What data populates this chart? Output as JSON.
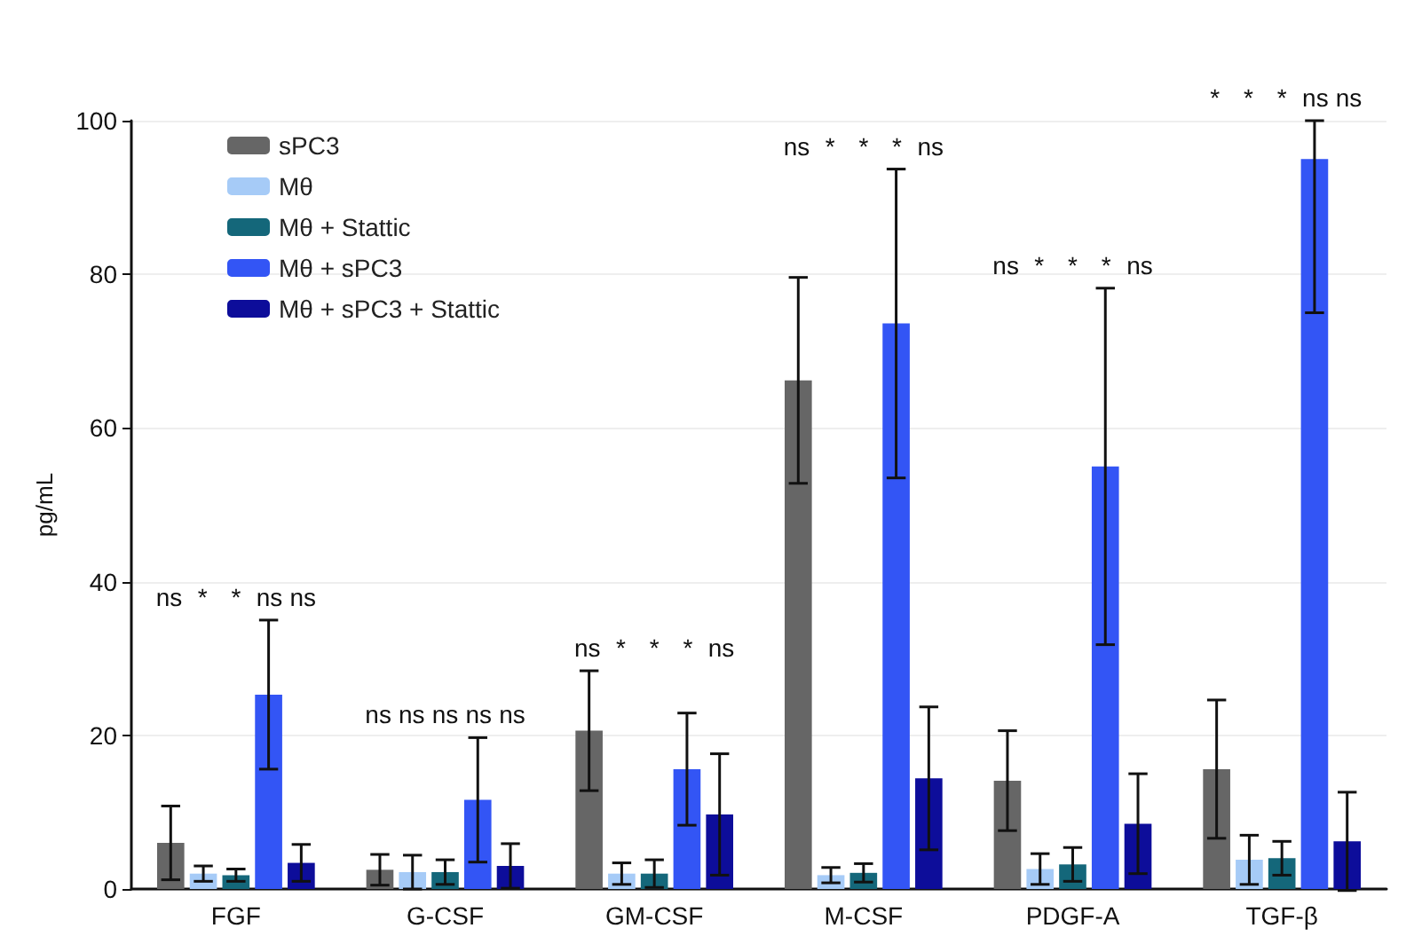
{
  "chart_data": {
    "type": "bar",
    "ylabel": "pg/mL",
    "categories": [
      "FGF",
      "G-CSF",
      "GM-CSF",
      "M-CSF",
      "PDGF-A",
      "TGF-β"
    ],
    "series": [
      {
        "name": "sPC3",
        "color": "#666666",
        "values": [
          6,
          2.5,
          20.6,
          66.2,
          14.1,
          15.6
        ],
        "errors": [
          4.8,
          2,
          7.8,
          13.4,
          6.5,
          9
        ]
      },
      {
        "name": "Mθ",
        "color": "#a6cbf7",
        "values": [
          2,
          2.2,
          2,
          1.8,
          2.6,
          3.8
        ],
        "errors": [
          1,
          2.2,
          1.4,
          1,
          2,
          3.2
        ]
      },
      {
        "name": "Mθ + Stattic",
        "color": "#14677a",
        "values": [
          1.8,
          2.2,
          2,
          2.1,
          3.2,
          4
        ],
        "errors": [
          0.8,
          1.6,
          1.8,
          1.2,
          2.2,
          2.2
        ]
      },
      {
        "name": "Mθ + sPC3",
        "color": "#3355f5",
        "values": [
          25.3,
          11.6,
          15.6,
          73.6,
          55,
          95
        ],
        "errors": [
          9.7,
          8.1,
          7.3,
          20.1,
          23.2,
          [
            75,
            100
          ]
        ]
      },
      {
        "name": "Mθ + sPC3 + Stattic",
        "color": "#0d0d9a",
        "values": [
          3.4,
          3,
          9.7,
          14.4,
          8.5,
          6.2
        ],
        "errors": [
          2.4,
          2.9,
          7.9,
          9.3,
          6.5,
          6.4
        ]
      }
    ],
    "ylim": [
      0,
      100
    ],
    "yticks": [
      0,
      20,
      40,
      60,
      80,
      100
    ],
    "grid": "y",
    "legend": "top left",
    "annotations": [
      "ns",
      "*",
      "*",
      "ns",
      "ns",
      "ns",
      "ns",
      "ns",
      "ns",
      "ns",
      "ns",
      "*",
      "*",
      "*",
      "ns",
      "ns",
      "*",
      "*",
      "*",
      "ns",
      "ns",
      "*",
      "*",
      "*",
      "ns",
      "*",
      "*",
      "*",
      "ns",
      "ns"
    ]
  }
}
